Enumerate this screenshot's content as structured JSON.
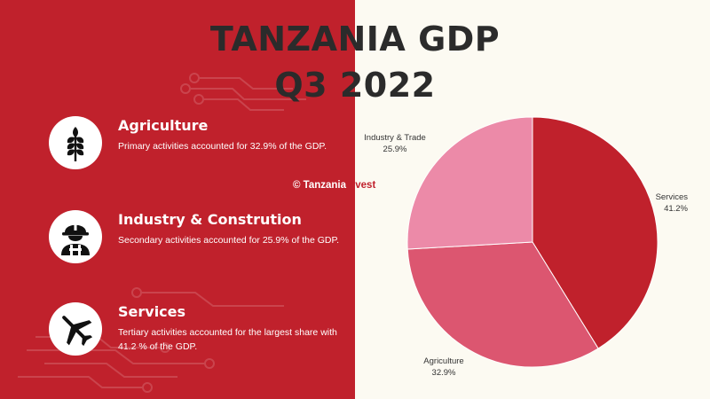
{
  "title": {
    "line1": "TANZANIA GDP",
    "line2": "Q3 2022"
  },
  "copyright": {
    "prefix": "© Tanzania",
    "suffix": "Invest"
  },
  "items": [
    {
      "icon": "wheat-icon",
      "heading": "Agriculture",
      "description": "Primary activities accounted for 32.9% of the GDP."
    },
    {
      "icon": "worker-hardhat-icon",
      "heading": "Industry & Constrution",
      "description": "Secondary activities accounted for 25.9% of the GDP."
    },
    {
      "icon": "airplane-icon",
      "heading": "Services",
      "description": "Tertiary activities accounted for the largest share with 41.2 % of the GDP."
    }
  ],
  "colors": {
    "left_background": "#c0212c",
    "right_background": "#fcfaf2",
    "title": "#2b2b2b"
  },
  "chart_data": {
    "type": "pie",
    "title": "",
    "slices": [
      {
        "label": "Services",
        "value": 41.2,
        "value_label": "41.2%",
        "color": "#c0212c"
      },
      {
        "label": "Agriculture",
        "value": 32.9,
        "value_label": "32.9%",
        "color": "#dc5670"
      },
      {
        "label": "Industry & Trade",
        "value": 25.9,
        "value_label": "25.9%",
        "color": "#ec8aa8"
      }
    ],
    "start_angle_deg": 0,
    "direction": "clockwise",
    "legend": "none"
  }
}
